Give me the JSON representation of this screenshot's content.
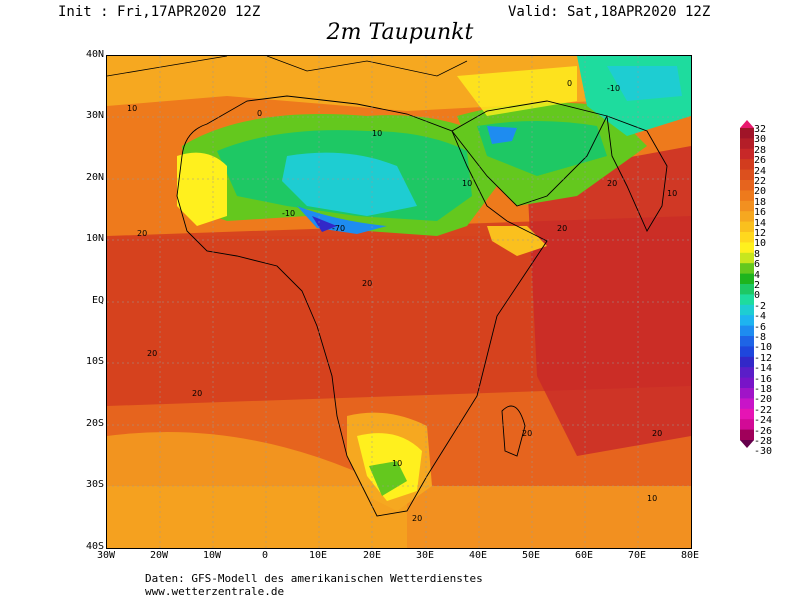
{
  "header": {
    "init": "Init : Fri,17APR2020 12Z",
    "valid": "Valid: Sat,18APR2020 12Z",
    "title": "2m Taupunkt"
  },
  "axes": {
    "lat_labels": [
      "40N",
      "30N",
      "20N",
      "10N",
      "EQ",
      "10S",
      "20S",
      "30S",
      "40S"
    ],
    "lon_labels": [
      "30W",
      "20W",
      "10W",
      "0",
      "10E",
      "20E",
      "30E",
      "40E",
      "50E",
      "60E",
      "70E",
      "80E"
    ]
  },
  "legend": {
    "levels": [
      "32",
      "30",
      "28",
      "26",
      "24",
      "22",
      "20",
      "18",
      "16",
      "14",
      "12",
      "10",
      "8",
      "6",
      "4",
      "2",
      "0",
      "-2",
      "-4",
      "-6",
      "-8",
      "-10",
      "-12",
      "-14",
      "-16",
      "-18",
      "-20",
      "-22",
      "-24",
      "-26",
      "-28",
      "-30"
    ],
    "colors": [
      "#e8186e",
      "#a01428",
      "#b41e28",
      "#c82828",
      "#d23c1e",
      "#dc501e",
      "#e6641e",
      "#ee7a1c",
      "#f29020",
      "#f6a820",
      "#fac01e",
      "#ffd81e",
      "#fff01e",
      "#c8e61e",
      "#64c81e",
      "#1eb41e",
      "#1ec864",
      "#1edc9e",
      "#1ecdd2",
      "#1eb4f0",
      "#1e8cf0",
      "#1e64e6",
      "#1e46dc",
      "#3228c8",
      "#5a1ec8",
      "#7814c8",
      "#a014c8",
      "#c814c8",
      "#e614b4",
      "#d20a96",
      "#a0005a",
      "#64004b"
    ]
  },
  "map": {
    "contour_labels": [
      "10",
      "0",
      "-10",
      "20",
      "-70",
      "10",
      "10",
      "20",
      "20",
      "10",
      "0",
      "-10",
      "20",
      "20",
      "20",
      "20",
      "20",
      "10",
      "10",
      "20"
    ]
  },
  "footer": {
    "line1": "Daten: GFS-Modell des amerikanischen Wetterdienstes",
    "line2": "www.wetterzentrale.de"
  }
}
